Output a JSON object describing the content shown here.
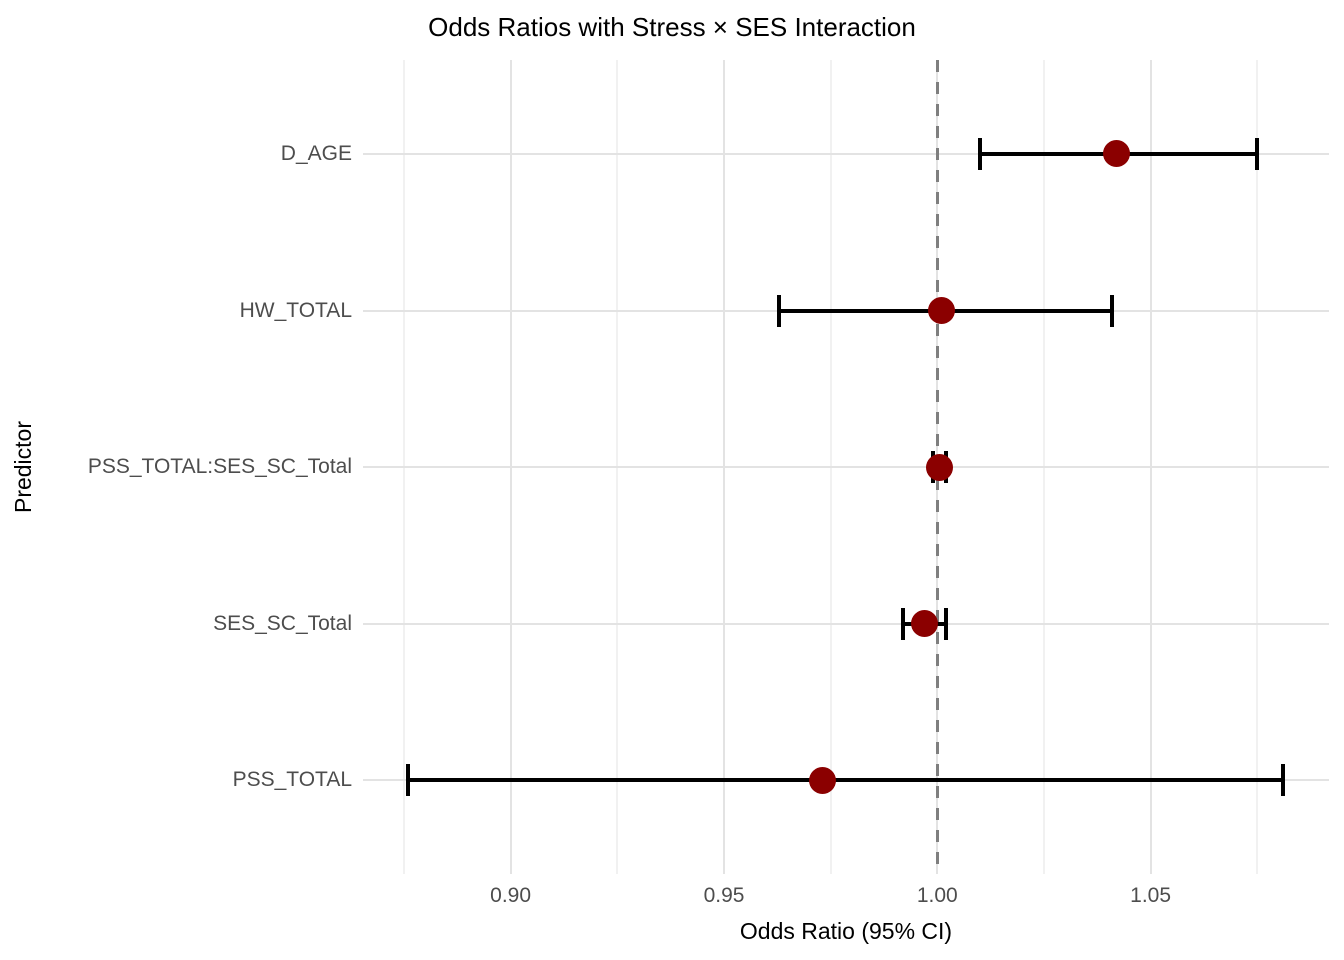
{
  "figure": {
    "title": "Odds Ratios with Stress × SES Interaction",
    "x_axis_title": "Odds Ratio (95% CI)",
    "y_axis_title": "Predictor"
  },
  "colors": {
    "point": "#8B0000",
    "error_bar": "#000000",
    "reference_line": "#7F7F7F",
    "grid_major": "#E3E3E3",
    "grid_minor": "#F1F1F1",
    "axis_text": "#4D4D4D",
    "title_text": "#000000"
  },
  "chart_data": {
    "type": "scatter",
    "subtype": "forest-plot-odds-ratios",
    "title": "Odds Ratios with Stress × SES Interaction",
    "xlabel": "Odds Ratio (95% CI)",
    "ylabel": "Predictor",
    "legend": false,
    "grid": true,
    "xlim": [
      0.8654,
      1.0918
    ],
    "x_major_ticks": [
      0.9,
      0.95,
      1.0,
      1.05
    ],
    "x_tick_labels": [
      "0.90",
      "0.95",
      "1.00",
      "1.05"
    ],
    "x_minor_ticks": [
      0.875,
      0.925,
      0.975,
      1.025,
      1.075
    ],
    "reference_line_x": 1.0,
    "categories_top_to_bottom": [
      "D_AGE",
      "HW_TOTAL",
      "PSS_TOTAL:SES_SC_Total",
      "SES_SC_Total",
      "PSS_TOTAL"
    ],
    "points": [
      {
        "predictor": "D_AGE",
        "or": 1.042,
        "ci_low": 1.01,
        "ci_high": 1.075
      },
      {
        "predictor": "HW_TOTAL",
        "or": 1.001,
        "ci_low": 0.963,
        "ci_high": 1.041
      },
      {
        "predictor": "PSS_TOTAL:SES_SC_Total",
        "or": 1.0005,
        "ci_low": 0.999,
        "ci_high": 1.002
      },
      {
        "predictor": "SES_SC_Total",
        "or": 0.997,
        "ci_low": 0.992,
        "ci_high": 1.002
      },
      {
        "predictor": "PSS_TOTAL",
        "or": 0.973,
        "ci_low": 0.876,
        "ci_high": 1.081
      }
    ]
  }
}
